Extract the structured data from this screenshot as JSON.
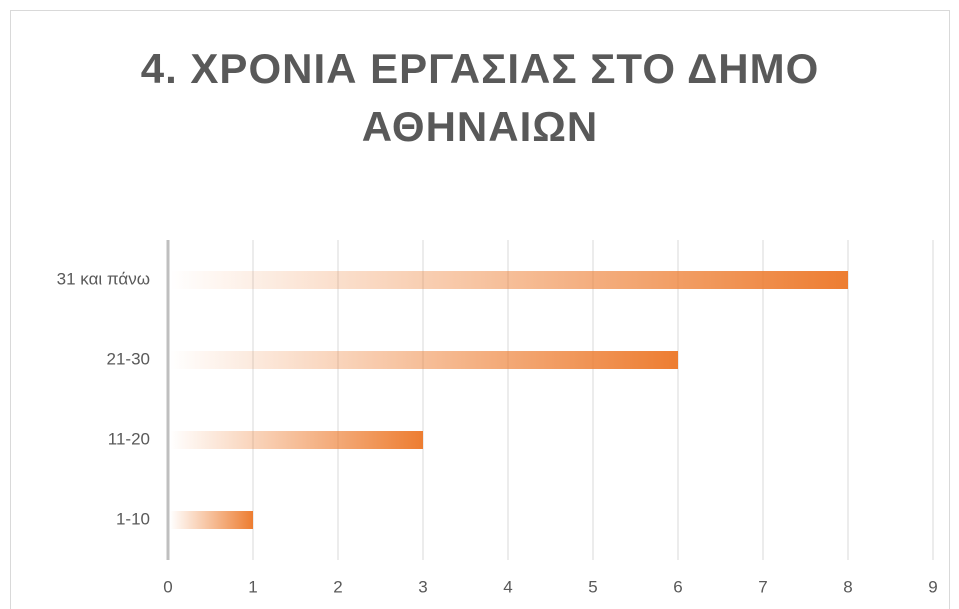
{
  "chart_data": {
    "type": "bar",
    "orientation": "horizontal",
    "title": "4. ΧΡΟΝΙΑ ΕΡΓΑΣΙΑΣ ΣΤΟ ΔΗΜΟ ΑΘΗΝΑΙΩΝ",
    "categories": [
      "31 και πάνω",
      "21-30",
      "11-20",
      "1-10"
    ],
    "values": [
      8,
      6,
      3,
      1
    ],
    "color": "#ed7d31",
    "xlim": [
      0,
      9
    ],
    "xticks": [
      0,
      1,
      2,
      3,
      4,
      5,
      6,
      7,
      8,
      9
    ],
    "grid": true
  }
}
